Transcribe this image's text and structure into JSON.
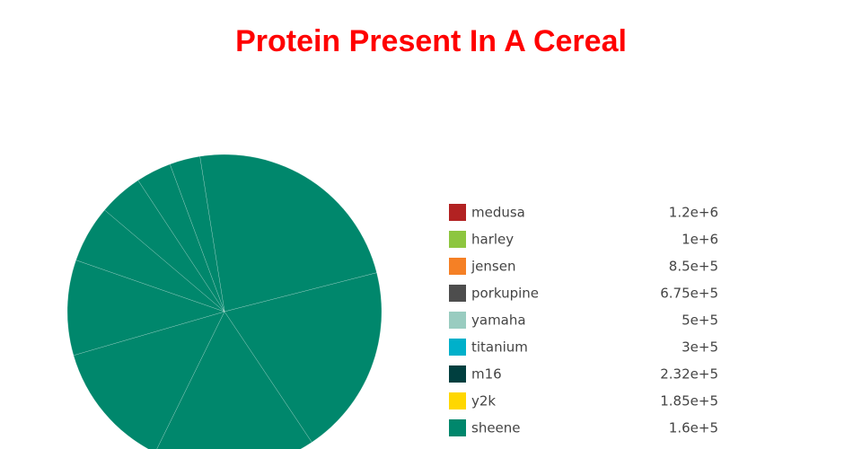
{
  "chart_data": {
    "type": "pie",
    "title": "Protein Present In A Cereal",
    "categories": [
      "medusa",
      "harley",
      "jensen",
      "porkupine",
      "yamaha",
      "titanium",
      "m16",
      "y2k",
      "sheene"
    ],
    "values": [
      1200000,
      1000000,
      850000,
      675000,
      500000,
      300000,
      232000,
      185000,
      160000
    ],
    "value_labels": [
      "1.2e+6",
      "1e+6",
      "8.5e+5",
      "6.75e+5",
      "5e+5",
      "3e+5",
      "2.32e+5",
      "1.85e+5",
      "1.6e+5"
    ],
    "slice_color": "#00876c",
    "legend_colors": [
      "#b22222",
      "#8dc63f",
      "#f58025",
      "#4d4d4d",
      "#99ccc0",
      "#00b0ca",
      "#003f3f",
      "#ffd700",
      "#00876c"
    ]
  }
}
